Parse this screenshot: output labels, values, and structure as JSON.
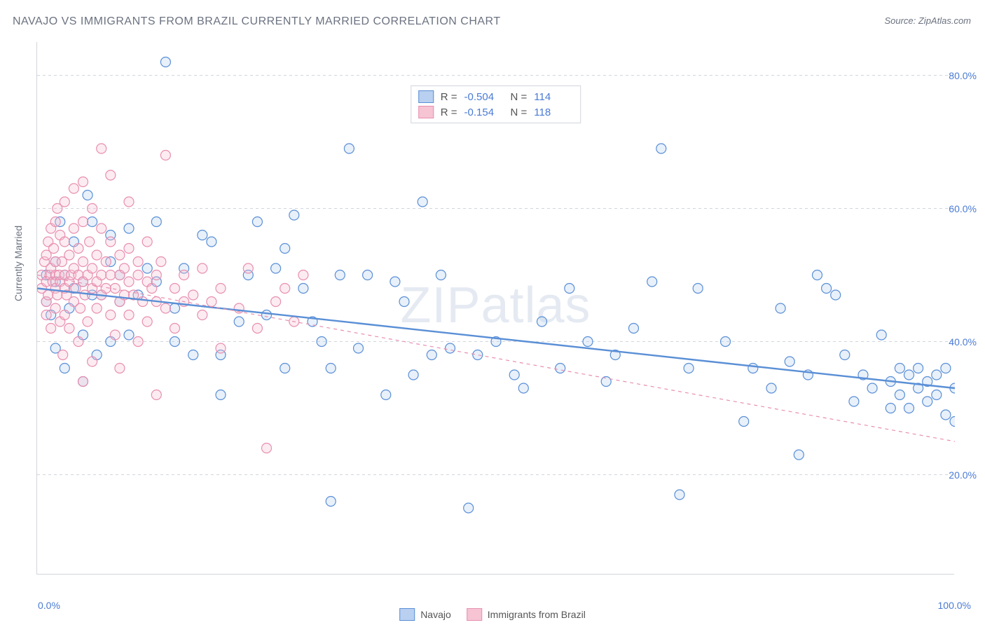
{
  "title": "NAVAJO VS IMMIGRANTS FROM BRAZIL CURRENTLY MARRIED CORRELATION CHART",
  "source": "Source: ZipAtlas.com",
  "watermark": "ZIPatlas",
  "ylabel": "Currently Married",
  "chart": {
    "type": "scatter",
    "background_color": "#ffffff",
    "grid_color": "#d1d5db",
    "grid_dash": "4,4",
    "xlim": [
      0,
      100
    ],
    "ylim": [
      5,
      85
    ],
    "xtick_left": "0.0%",
    "xtick_right": "100.0%",
    "yticks": [
      {
        "v": 20,
        "label": "20.0%"
      },
      {
        "v": 40,
        "label": "40.0%"
      },
      {
        "v": 60,
        "label": "60.0%"
      },
      {
        "v": 80,
        "label": "80.0%"
      }
    ],
    "xticks_minor": [
      12.5,
      25,
      37.5,
      50,
      62.5,
      75,
      87.5
    ],
    "marker_radius": 7,
    "marker_stroke_width": 1.2,
    "marker_fill_opacity": 0.32,
    "series": [
      {
        "name": "Navajo",
        "color_fill": "#b9d0f0",
        "color_stroke": "#5a8fd6",
        "R": "-0.504",
        "N": "114",
        "regression": {
          "x1": 0,
          "y1": 48,
          "x2": 100,
          "y2": 33,
          "stroke_width": 2.4,
          "dash": "none"
        },
        "points": [
          [
            1,
            50
          ],
          [
            1,
            46
          ],
          [
            1.5,
            44
          ],
          [
            2,
            52
          ],
          [
            2,
            49
          ],
          [
            2,
            39
          ],
          [
            2.5,
            58
          ],
          [
            3,
            50
          ],
          [
            3,
            36
          ],
          [
            3.5,
            45
          ],
          [
            4,
            48
          ],
          [
            4,
            55
          ],
          [
            5,
            41
          ],
          [
            5,
            49
          ],
          [
            5,
            34
          ],
          [
            5.5,
            62
          ],
          [
            6,
            47
          ],
          [
            6,
            58
          ],
          [
            6.5,
            38
          ],
          [
            7,
            47
          ],
          [
            8,
            52
          ],
          [
            8,
            56
          ],
          [
            8,
            40
          ],
          [
            9,
            50
          ],
          [
            9,
            46
          ],
          [
            10,
            57
          ],
          [
            10,
            41
          ],
          [
            11,
            47
          ],
          [
            12,
            51
          ],
          [
            13,
            49
          ],
          [
            13,
            58
          ],
          [
            14,
            82
          ],
          [
            15,
            45
          ],
          [
            15,
            40
          ],
          [
            16,
            51
          ],
          [
            17,
            38
          ],
          [
            18,
            56
          ],
          [
            19,
            55
          ],
          [
            20,
            38
          ],
          [
            20,
            32
          ],
          [
            22,
            43
          ],
          [
            23,
            50
          ],
          [
            24,
            58
          ],
          [
            25,
            44
          ],
          [
            26,
            51
          ],
          [
            27,
            36
          ],
          [
            27,
            54
          ],
          [
            28,
            59
          ],
          [
            29,
            48
          ],
          [
            30,
            43
          ],
          [
            31,
            40
          ],
          [
            32,
            16
          ],
          [
            32,
            36
          ],
          [
            33,
            50
          ],
          [
            34,
            69
          ],
          [
            35,
            39
          ],
          [
            36,
            50
          ],
          [
            38,
            32
          ],
          [
            39,
            49
          ],
          [
            40,
            46
          ],
          [
            41,
            35
          ],
          [
            42,
            61
          ],
          [
            43,
            38
          ],
          [
            44,
            50
          ],
          [
            45,
            39
          ],
          [
            47,
            15
          ],
          [
            48,
            38
          ],
          [
            50,
            40
          ],
          [
            52,
            35
          ],
          [
            53,
            33
          ],
          [
            55,
            43
          ],
          [
            57,
            36
          ],
          [
            58,
            48
          ],
          [
            60,
            40
          ],
          [
            62,
            34
          ],
          [
            63,
            38
          ],
          [
            65,
            42
          ],
          [
            67,
            49
          ],
          [
            68,
            69
          ],
          [
            70,
            17
          ],
          [
            71,
            36
          ],
          [
            72,
            48
          ],
          [
            75,
            40
          ],
          [
            77,
            28
          ],
          [
            78,
            36
          ],
          [
            80,
            33
          ],
          [
            81,
            45
          ],
          [
            82,
            37
          ],
          [
            83,
            23
          ],
          [
            84,
            35
          ],
          [
            85,
            50
          ],
          [
            86,
            48
          ],
          [
            87,
            47
          ],
          [
            88,
            38
          ],
          [
            89,
            31
          ],
          [
            90,
            35
          ],
          [
            91,
            33
          ],
          [
            92,
            41
          ],
          [
            93,
            30
          ],
          [
            93,
            34
          ],
          [
            94,
            36
          ],
          [
            94,
            32
          ],
          [
            95,
            35
          ],
          [
            95,
            30
          ],
          [
            96,
            36
          ],
          [
            96,
            33
          ],
          [
            97,
            31
          ],
          [
            97,
            34
          ],
          [
            98,
            35
          ],
          [
            98,
            32
          ],
          [
            99,
            36
          ],
          [
            99,
            29
          ],
          [
            100,
            33
          ],
          [
            100,
            28
          ]
        ]
      },
      {
        "name": "Immigrants from Brazil",
        "color_fill": "#f6c4d3",
        "color_stroke": "#e88fb0",
        "R": "-0.154",
        "N": "118",
        "regression": {
          "x1": 0,
          "y1": 50,
          "x2": 100,
          "y2": 25,
          "stroke_width": 1.2,
          "dash": "5,5"
        },
        "points": [
          [
            0.5,
            48
          ],
          [
            0.5,
            50
          ],
          [
            0.8,
            52
          ],
          [
            1,
            46
          ],
          [
            1,
            49
          ],
          [
            1,
            53
          ],
          [
            1,
            44
          ],
          [
            1.2,
            55
          ],
          [
            1.2,
            47
          ],
          [
            1.4,
            50
          ],
          [
            1.5,
            51
          ],
          [
            1.5,
            42
          ],
          [
            1.5,
            57
          ],
          [
            1.7,
            49
          ],
          [
            1.8,
            54
          ],
          [
            2,
            48
          ],
          [
            2,
            50
          ],
          [
            2,
            58
          ],
          [
            2,
            45
          ],
          [
            2,
            52
          ],
          [
            2.2,
            60
          ],
          [
            2.2,
            47
          ],
          [
            2.4,
            50
          ],
          [
            2.5,
            56
          ],
          [
            2.5,
            49
          ],
          [
            2.5,
            43
          ],
          [
            2.7,
            52
          ],
          [
            2.8,
            38
          ],
          [
            3,
            44
          ],
          [
            3,
            50
          ],
          [
            3,
            48
          ],
          [
            3,
            55
          ],
          [
            3,
            61
          ],
          [
            3.2,
            47
          ],
          [
            3.5,
            49
          ],
          [
            3.5,
            53
          ],
          [
            3.5,
            42
          ],
          [
            3.7,
            50
          ],
          [
            4,
            46
          ],
          [
            4,
            51
          ],
          [
            4,
            57
          ],
          [
            4,
            63
          ],
          [
            4.2,
            48
          ],
          [
            4.5,
            50
          ],
          [
            4.5,
            54
          ],
          [
            4.5,
            40
          ],
          [
            4.7,
            45
          ],
          [
            5,
            49
          ],
          [
            5,
            34
          ],
          [
            5,
            52
          ],
          [
            5,
            58
          ],
          [
            5,
            64
          ],
          [
            5.2,
            47
          ],
          [
            5.5,
            50
          ],
          [
            5.5,
            43
          ],
          [
            5.7,
            55
          ],
          [
            6,
            48
          ],
          [
            6,
            51
          ],
          [
            6,
            60
          ],
          [
            6,
            37
          ],
          [
            6.5,
            49
          ],
          [
            6.5,
            53
          ],
          [
            6.5,
            45
          ],
          [
            7,
            50
          ],
          [
            7,
            57
          ],
          [
            7,
            47
          ],
          [
            7,
            69
          ],
          [
            7.5,
            48
          ],
          [
            7.5,
            52
          ],
          [
            8,
            44
          ],
          [
            8,
            50
          ],
          [
            8,
            55
          ],
          [
            8,
            65
          ],
          [
            8.5,
            48
          ],
          [
            8.5,
            41
          ],
          [
            9,
            50
          ],
          [
            9,
            46
          ],
          [
            9,
            53
          ],
          [
            9,
            36
          ],
          [
            9.5,
            47
          ],
          [
            9.5,
            51
          ],
          [
            10,
            49
          ],
          [
            10,
            54
          ],
          [
            10,
            44
          ],
          [
            10,
            61
          ],
          [
            10.5,
            47
          ],
          [
            11,
            50
          ],
          [
            11,
            40
          ],
          [
            11,
            52
          ],
          [
            11.5,
            46
          ],
          [
            12,
            49
          ],
          [
            12,
            55
          ],
          [
            12,
            43
          ],
          [
            12.5,
            48
          ],
          [
            13,
            50
          ],
          [
            13,
            32
          ],
          [
            13,
            46
          ],
          [
            13.5,
            52
          ],
          [
            14,
            45
          ],
          [
            14,
            68
          ],
          [
            15,
            48
          ],
          [
            15,
            42
          ],
          [
            16,
            50
          ],
          [
            16,
            46
          ],
          [
            17,
            47
          ],
          [
            18,
            44
          ],
          [
            18,
            51
          ],
          [
            19,
            46
          ],
          [
            20,
            48
          ],
          [
            20,
            39
          ],
          [
            22,
            45
          ],
          [
            23,
            51
          ],
          [
            24,
            42
          ],
          [
            25,
            24
          ],
          [
            26,
            46
          ],
          [
            27,
            48
          ],
          [
            28,
            43
          ],
          [
            29,
            50
          ]
        ]
      }
    ],
    "stats_labels": {
      "R": "R =",
      "N": "N ="
    },
    "title_fontsize": 16,
    "label_fontsize": 14,
    "tick_color": "#4a7bd4",
    "text_color": "#6b7280"
  }
}
